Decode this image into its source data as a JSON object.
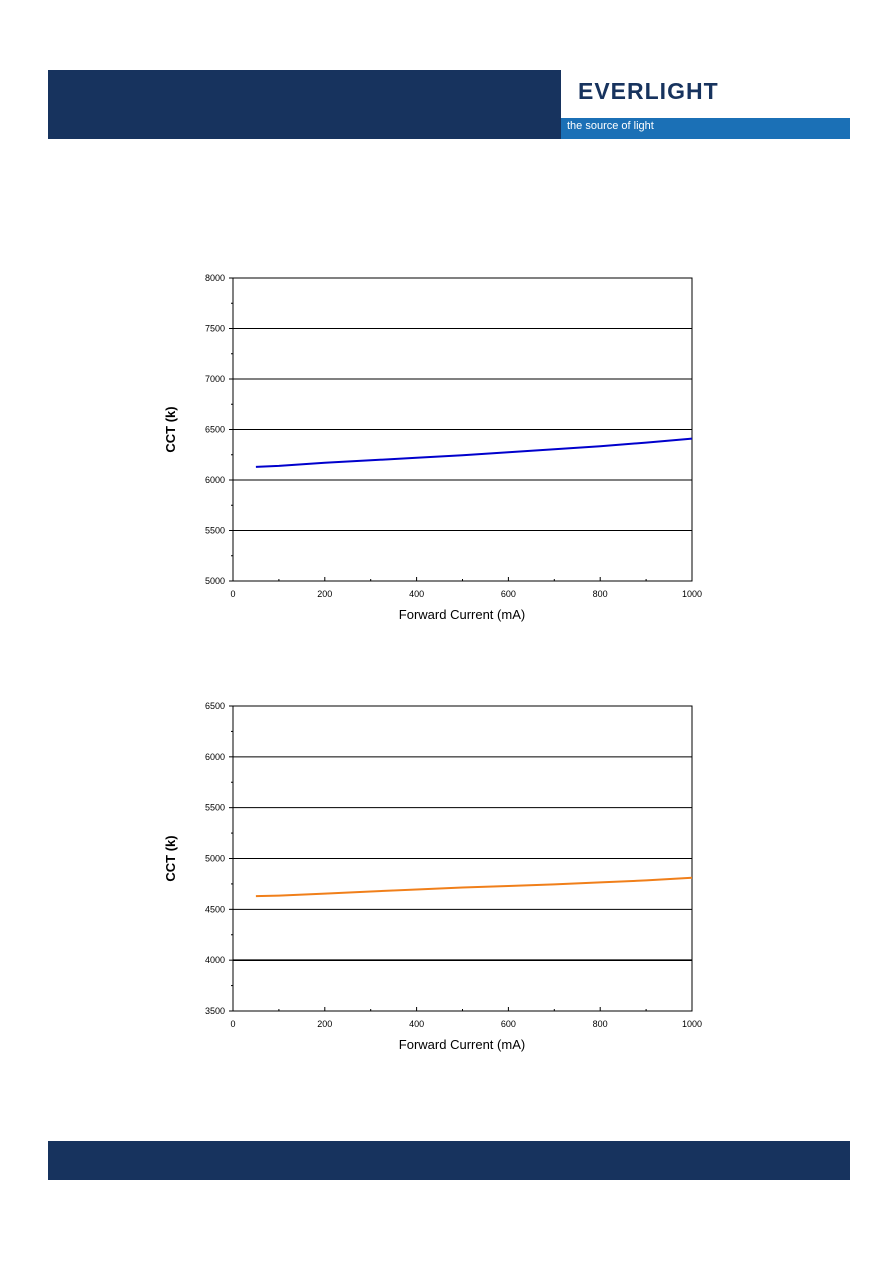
{
  "header": {
    "brand": "EVERLIGHT",
    "tagline": "the source of light",
    "colors": {
      "band": "#17335e",
      "tagline_bar": "#1b70b6"
    }
  },
  "chart_data": [
    {
      "type": "line",
      "xlabel": "Forward Current (mA)",
      "ylabel": "CCT (k)",
      "xlim": [
        0,
        1000
      ],
      "ylim": [
        5000,
        8000
      ],
      "xticks": [
        0,
        200,
        400,
        600,
        800,
        1000
      ],
      "xtick_labels": [
        "0",
        "200",
        "400",
        "600",
        "800",
        "1000"
      ],
      "yticks": [
        5000,
        5500,
        6000,
        6500,
        7000,
        7500,
        8000
      ],
      "ytick_labels": [
        "5000",
        "5500",
        "6000",
        "6500",
        "7000",
        "7500",
        "8000"
      ],
      "grid": "horizontal",
      "series": [
        {
          "color": "#0000cc",
          "x": [
            50,
            100,
            200,
            300,
            400,
            500,
            600,
            700,
            800,
            900,
            1000
          ],
          "y": [
            6130,
            6140,
            6170,
            6195,
            6220,
            6245,
            6275,
            6305,
            6335,
            6370,
            6410
          ]
        }
      ]
    },
    {
      "type": "line",
      "xlabel": "Forward Current (mA)",
      "ylabel": "CCT (k)",
      "xlim": [
        0,
        1000
      ],
      "ylim": [
        3500,
        6500
      ],
      "xticks": [
        0,
        200,
        400,
        600,
        800,
        1000
      ],
      "xtick_labels": [
        "0",
        "200",
        "400",
        "600",
        "800",
        "1000"
      ],
      "yticks": [
        3500,
        4000,
        4500,
        5000,
        5500,
        6000,
        6500
      ],
      "ytick_labels": [
        "3500",
        "4000",
        "4500",
        "5000",
        "5500",
        "6000",
        "6500"
      ],
      "grid": "horizontal",
      "series": [
        {
          "color": "#f07f1a",
          "x": [
            50,
            100,
            200,
            300,
            400,
            500,
            600,
            700,
            800,
            900,
            1000
          ],
          "y": [
            4630,
            4635,
            4655,
            4675,
            4695,
            4715,
            4730,
            4745,
            4765,
            4785,
            4810
          ]
        }
      ]
    }
  ]
}
